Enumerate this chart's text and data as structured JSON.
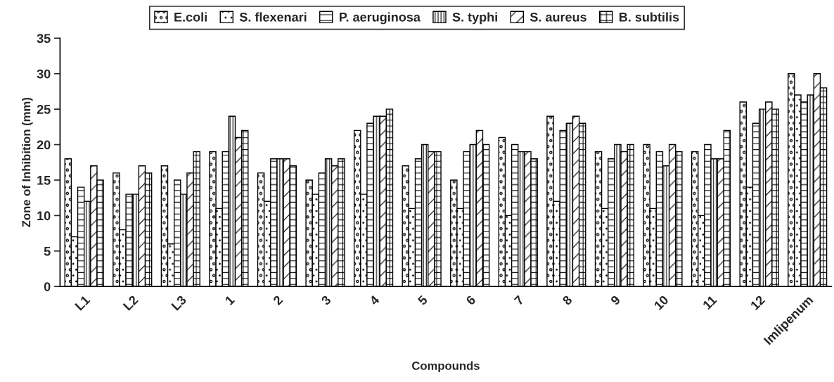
{
  "chart_data": {
    "type": "bar",
    "xlabel": "Compounds",
    "ylabel": "Zone of Inhibition (mm)",
    "categories": [
      "L1",
      "L2",
      "L3",
      "1",
      "2",
      "3",
      "4",
      "5",
      "6",
      "7",
      "8",
      "9",
      "10",
      "11",
      "12",
      "Imlipenum"
    ],
    "series": [
      {
        "name": "E.coli",
        "color": "#000000",
        "values": [
          18,
          16,
          17,
          19,
          16,
          15,
          22,
          17,
          15,
          21,
          24,
          19,
          20,
          19,
          26,
          30
        ]
      },
      {
        "name": "S. flexenari",
        "color": "#000000",
        "values": [
          7,
          8,
          6,
          11,
          12,
          13,
          13,
          11,
          11,
          10,
          12,
          11,
          11,
          10,
          14,
          27
        ]
      },
      {
        "name": "P. aeruginosa",
        "color": "#000000",
        "values": [
          14,
          13,
          15,
          19,
          18,
          16,
          23,
          18,
          19,
          20,
          22,
          18,
          19,
          20,
          23,
          26
        ]
      },
      {
        "name": "S. typhi",
        "color": "#000000",
        "values": [
          12,
          13,
          13,
          24,
          18,
          18,
          24,
          20,
          20,
          19,
          23,
          20,
          17,
          18,
          25,
          27
        ]
      },
      {
        "name": "S. aureus",
        "color": "#000000",
        "values": [
          17,
          17,
          16,
          21,
          18,
          17,
          24,
          19,
          22,
          19,
          24,
          19,
          20,
          18,
          26,
          30
        ]
      },
      {
        "name": "B. subtilis",
        "color": "#000000",
        "values": [
          15,
          16,
          19,
          22,
          17,
          18,
          25,
          19,
          20,
          18,
          23,
          20,
          19,
          22,
          25,
          28
        ]
      }
    ],
    "ylim": [
      0,
      35
    ],
    "yticks": [
      0,
      5,
      10,
      15,
      20,
      25,
      30,
      35
    ],
    "grid": false,
    "legend": "top"
  }
}
